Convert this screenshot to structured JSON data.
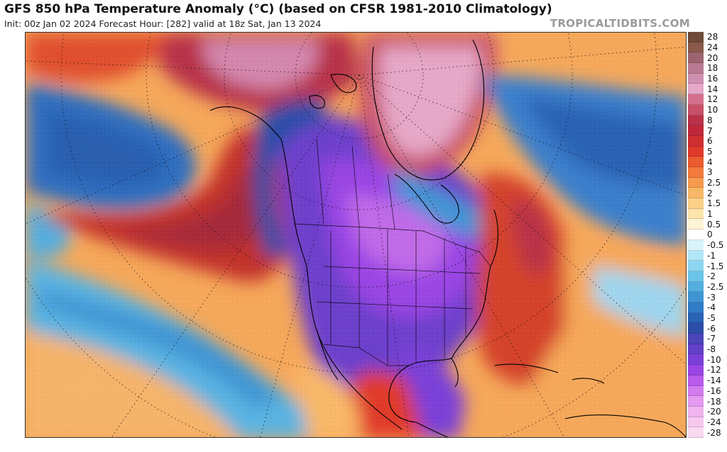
{
  "header": {
    "title": "GFS 850 hPa Temperature Anomaly (°C) (based on CFSR 1981-2010 Climatology)",
    "subtitle": "Init: 00z Jan 02 2024   Forecast Hour: [282]   valid at 18z Sat, Jan 13 2024",
    "brand": "TROPICALTIDBITS.COM"
  },
  "map": {
    "region": "North America and adjacent North Pacific / North Atlantic",
    "projection": "polar stereographic",
    "overlays": [
      "coastlines",
      "country borders",
      "US state / Canadian province borders",
      "latitude-longitude dotted grid"
    ],
    "features": [
      {
        "name": "cold-anomaly-central-north-america",
        "anomaly": "below -10 °C",
        "color": "#7b3fd6"
      },
      {
        "name": "warm-anomaly-greenland",
        "anomaly": "+10 to +16 °C",
        "color": "#d97fa7"
      },
      {
        "name": "warm-anomaly-alaska-arctic",
        "anomaly": "+10 to +16 °C",
        "color": "#c9627f"
      },
      {
        "name": "warm-anomaly-northeast-pacific",
        "anomaly": "+4 to +8 °C",
        "color": "#c2302a"
      },
      {
        "name": "warm-anomaly-western-atlantic",
        "anomaly": "+3 to +7 °C",
        "color": "#d4422c"
      },
      {
        "name": "cold-anomaly-north-pacific",
        "anomaly": "-3 to -6 °C",
        "color": "#2d6ec0"
      },
      {
        "name": "cold-anomaly-north-atlantic",
        "anomaly": "-3 to -6 °C",
        "color": "#3a7fcc"
      },
      {
        "name": "cold-anomaly-subtropical-pacific",
        "anomaly": "-1 to -3 °C",
        "color": "#5ab4e2"
      }
    ]
  },
  "colorbar": {
    "entries": [
      {
        "label": "28",
        "color": "#6e4a3a"
      },
      {
        "label": "24",
        "color": "#8a5a4a"
      },
      {
        "label": "20",
        "color": "#9d6470"
      },
      {
        "label": "18",
        "color": "#b87a92"
      },
      {
        "label": "16",
        "color": "#cf8fb0"
      },
      {
        "label": "14",
        "color": "#e6a8c8"
      },
      {
        "label": "12",
        "color": "#d4708f"
      },
      {
        "label": "10",
        "color": "#c85068"
      },
      {
        "label": "8",
        "color": "#b8324a"
      },
      {
        "label": "7",
        "color": "#c0283a"
      },
      {
        "label": "6",
        "color": "#cf2f2f"
      },
      {
        "label": "5",
        "color": "#e03a2c"
      },
      {
        "label": "4",
        "color": "#ec5a30"
      },
      {
        "label": "3",
        "color": "#f27a3c"
      },
      {
        "label": "2.5",
        "color": "#f69a4e"
      },
      {
        "label": "2",
        "color": "#f9b868"
      },
      {
        "label": "1.5",
        "color": "#fbcf88"
      },
      {
        "label": "1",
        "color": "#fde4ad"
      },
      {
        "label": "0.5",
        "color": "#fff3d6"
      },
      {
        "label": "0",
        "color": "#ffffff"
      },
      {
        "label": "-0.5",
        "color": "#d8f3fb"
      },
      {
        "label": "-1",
        "color": "#b2e6f6"
      },
      {
        "label": "-1.5",
        "color": "#8dd6f0"
      },
      {
        "label": "-2",
        "color": "#6cc4e9"
      },
      {
        "label": "-2.5",
        "color": "#52aee0"
      },
      {
        "label": "-3",
        "color": "#3f95d4"
      },
      {
        "label": "-4",
        "color": "#327cc6"
      },
      {
        "label": "-5",
        "color": "#2a62b4"
      },
      {
        "label": "-6",
        "color": "#2c4ea8"
      },
      {
        "label": "-7",
        "color": "#4a45b8"
      },
      {
        "label": "-8",
        "color": "#6240c8"
      },
      {
        "label": "-10",
        "color": "#7a3fd8"
      },
      {
        "label": "-12",
        "color": "#9a45e4"
      },
      {
        "label": "-14",
        "color": "#b85aea"
      },
      {
        "label": "-16",
        "color": "#d27aee"
      },
      {
        "label": "-18",
        "color": "#e49af0"
      },
      {
        "label": "-20",
        "color": "#f0b4ee"
      },
      {
        "label": "-24",
        "color": "#f6c8ee"
      },
      {
        "label": "-28",
        "color": "#fad8f0"
      }
    ]
  }
}
